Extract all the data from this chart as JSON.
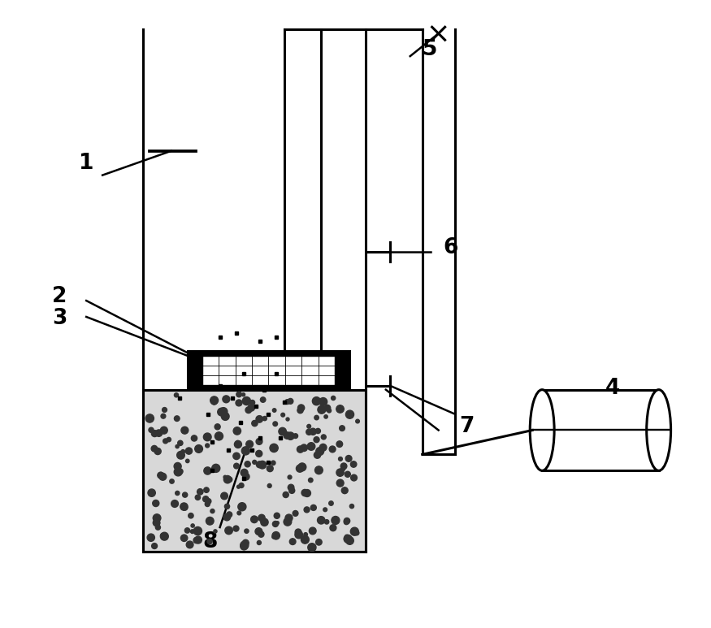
{
  "bg_color": "#ffffff",
  "line_color": "#000000",
  "lw": 2.2,
  "fig_width": 8.75,
  "fig_height": 7.73,
  "label_fontsize": 19
}
